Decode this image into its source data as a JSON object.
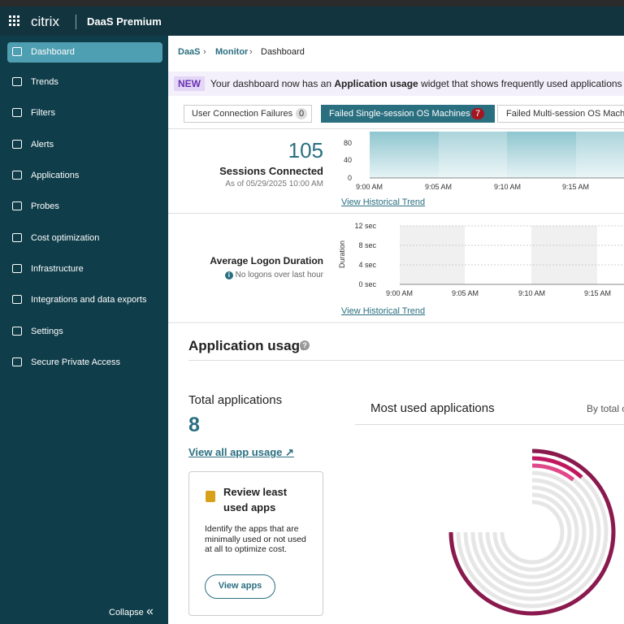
{
  "header": {
    "brand": "citrix",
    "product": "DaaS Premium"
  },
  "sidebar": {
    "items": [
      "Dashboard",
      "Trends",
      "Filters",
      "Alerts",
      "Applications",
      "Probes",
      "Cost optimization",
      "Infrastructure",
      "Integrations and data exports",
      "Settings",
      "Secure Private Access"
    ],
    "collapse": "Collapse"
  },
  "breadcrumb": [
    "DaaS",
    "Monitor",
    "Dashboard"
  ],
  "banner": {
    "badge": "NEW",
    "text_before": "Your dashboard now has an",
    "highlight": "Application usage",
    "text_after": "widget that shows frequently used applications and"
  },
  "tabs": [
    {
      "label": "User Connection Failures",
      "count": "0"
    },
    {
      "label": "Failed Single-session OS Machines",
      "count": "7"
    },
    {
      "label": "Failed Multi-session OS Machi"
    }
  ],
  "sessions": {
    "value": "105",
    "label": "Sessions Connected",
    "as_of": "As of 05/29/2025 10:00 AM",
    "yticks": [
      "80",
      "40",
      "0"
    ],
    "xticks": [
      "9:00 AM",
      "9:05 AM",
      "9:10 AM",
      "9:15 AM"
    ],
    "link": "View Historical Trend"
  },
  "logon": {
    "label": "Average Logon Duration",
    "note": "No logons over last hour",
    "y_label": "Duration",
    "yticks": [
      "12 sec",
      "8 sec",
      "4 sec",
      "0 sec"
    ],
    "xticks": [
      "9:00 AM",
      "9:05 AM",
      "9:10 AM",
      "9:15 AM"
    ],
    "link": "View Historical Trend"
  },
  "app_usage": {
    "title": "Application usage",
    "total_label": "Total applications",
    "total": "8",
    "view_all": "View all app usage",
    "card": {
      "title": "Review least used apps",
      "text": "Identify the apps that are minimally used or not used at all to optimize cost.",
      "button": "View apps"
    },
    "most_used": "Most used applications",
    "sort": "By total c"
  }
}
